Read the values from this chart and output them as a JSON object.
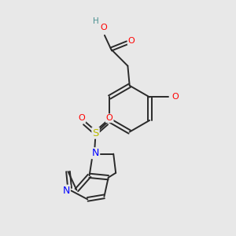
{
  "bg_color": "#e8e8e8",
  "bond_color": "#2a2a2a",
  "atom_colors": {
    "O": "#ff0000",
    "N": "#0000ff",
    "S": "#bbbb00",
    "H": "#4a9090",
    "C": "#2a2a2a"
  },
  "lw": 1.4,
  "fs": 7.5
}
